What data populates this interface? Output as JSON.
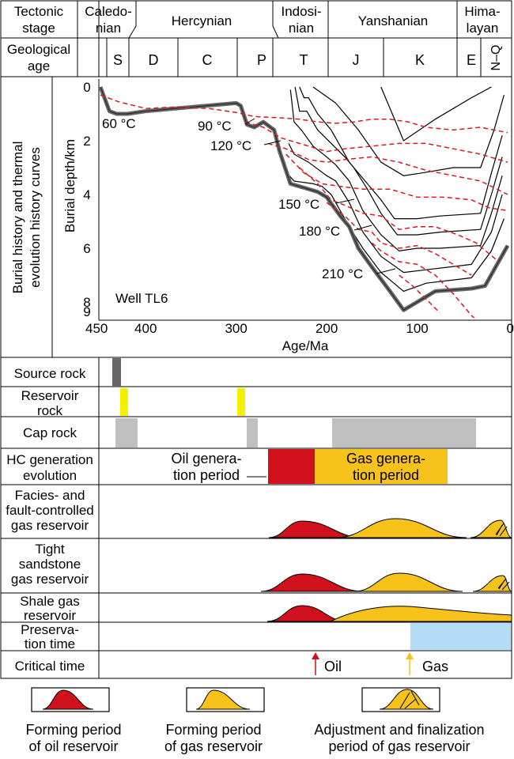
{
  "header": {
    "tectonic_label": [
      "Tectonic",
      "stage"
    ],
    "geo_label": [
      "Geological",
      "age"
    ],
    "stages": [
      {
        "lines": [
          "Caledo-",
          "nian"
        ]
      },
      {
        "lines": [
          "Hercynian"
        ]
      },
      {
        "lines": [
          "Indosi-",
          "nian"
        ]
      },
      {
        "lines": [
          "Yanshanian"
        ]
      },
      {
        "lines": [
          "Hima-",
          "layan"
        ]
      }
    ],
    "periods": [
      "S",
      "D",
      "C",
      "P",
      "T",
      "J",
      "K",
      "E",
      "N–Q"
    ]
  },
  "burial": {
    "side_label": [
      "Burial history and thermal",
      "evolution history curves"
    ],
    "ylabel": "Burial depth/km",
    "xlabel": "Age/Ma",
    "well": "Well TL6",
    "x_ticks": [
      450,
      400,
      300,
      200,
      100,
      0
    ],
    "y_ticks": [
      0,
      2,
      4,
      6,
      8,
      9
    ],
    "isotherms": [
      "60 °C",
      "90 °C",
      "120 °C",
      "150 °C",
      "180 °C",
      "210 °C"
    ]
  },
  "rows": {
    "source_rock": {
      "label": [
        "Source rock"
      ]
    },
    "reservoir_rock": {
      "label": [
        "Reservoir",
        "rock"
      ]
    },
    "cap_rock": {
      "label": [
        "Cap rock"
      ]
    },
    "hc_generation": {
      "label": [
        "HC generation",
        "evolution"
      ],
      "oil_text": [
        "Oil genera-",
        "tion period"
      ],
      "gas_text": [
        "Gas genera-",
        "tion period"
      ]
    },
    "facies_fault": {
      "label": [
        "Facies- and",
        "fault-controlled",
        "gas reservoir"
      ]
    },
    "tight_sandstone": {
      "label": [
        "Tight",
        "sandstone",
        "gas reservoir"
      ]
    },
    "shale_gas": {
      "label": [
        "Shale gas",
        "reservoir"
      ]
    },
    "preservation": {
      "label": [
        "Preserva-",
        "tion time"
      ]
    },
    "critical": {
      "label": [
        "Critical time"
      ],
      "oil": "Oil",
      "gas": "Gas"
    }
  },
  "legend": [
    {
      "lines": [
        "Forming period",
        "of oil reservoir"
      ]
    },
    {
      "lines": [
        "Forming period",
        "of gas reservoir"
      ]
    },
    {
      "lines": [
        "Adjustment and finalization",
        "period of gas reservoir"
      ]
    }
  ],
  "colors": {
    "oil": "#d0101c",
    "gas": "#f7c31b",
    "source": "#666666",
    "reservoir": "#f5f000",
    "cap": "#c0c0c0",
    "preservation": "#b5dcf7",
    "isotherm": "#d71920",
    "burial_main": "#666666"
  }
}
